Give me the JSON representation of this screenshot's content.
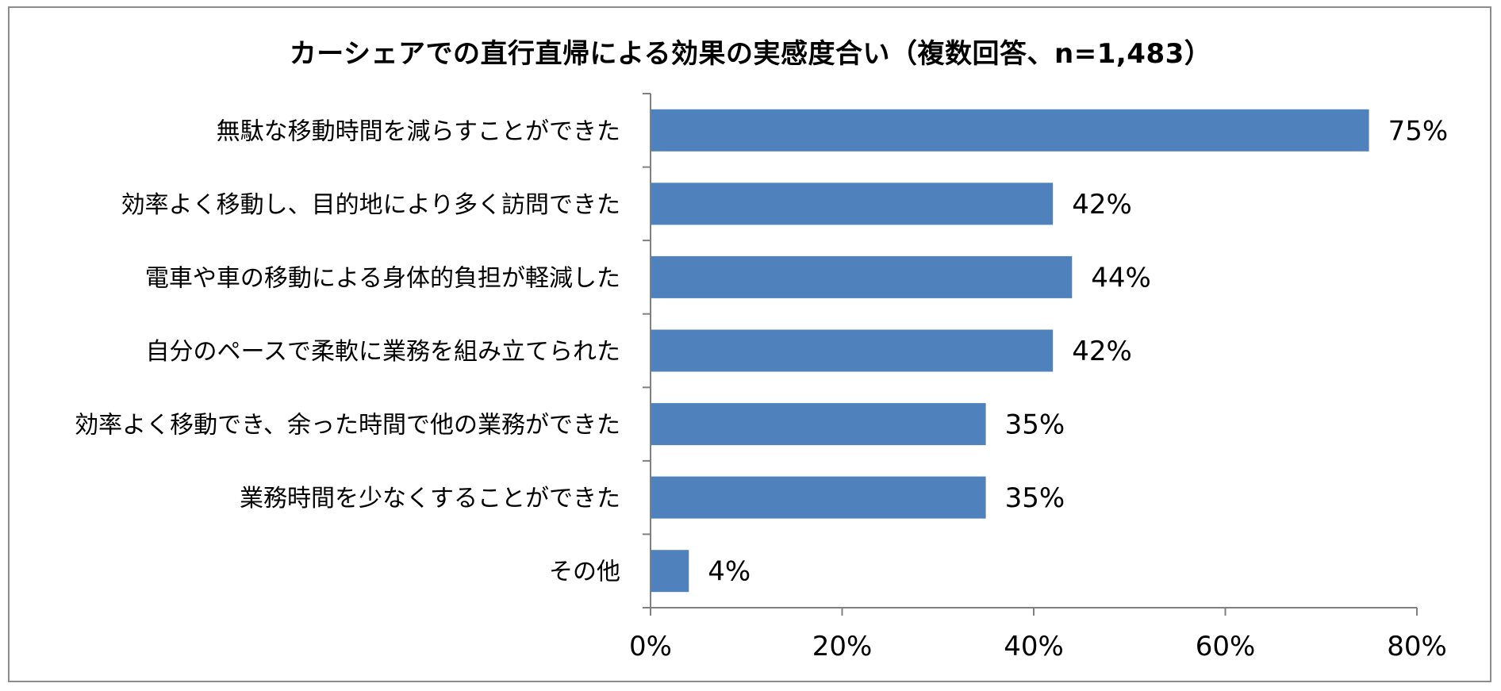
{
  "chart_data": {
    "type": "bar",
    "orientation": "horizontal",
    "title": "カーシェアでの直行直帰による効果の実感度合い（複数回答、n=1,483）",
    "categories": [
      "無駄な移動時間を減らすことができた",
      "効率よく移動し、目的地により多く訪問できた",
      "電車や車の移動による身体的負担が軽減した",
      "自分のペースで柔軟に業務を組み立てられた",
      "効率よく移動でき、余った時間で他の業務ができた",
      "業務時間を少なくすることができた",
      "その他"
    ],
    "values": [
      75,
      42,
      44,
      42,
      35,
      35,
      4
    ],
    "value_labels": [
      "75%",
      "42%",
      "44%",
      "42%",
      "35%",
      "35%",
      "4%"
    ],
    "xlim": [
      0,
      80
    ],
    "xticks": [
      0,
      20,
      40,
      60,
      80
    ],
    "xtick_labels": [
      "0%",
      "20%",
      "40%",
      "60%",
      "80%"
    ],
    "xlabel": "",
    "ylabel": "",
    "grid": false,
    "bar_color": "#4f81bd",
    "axis_color": "#808080"
  }
}
